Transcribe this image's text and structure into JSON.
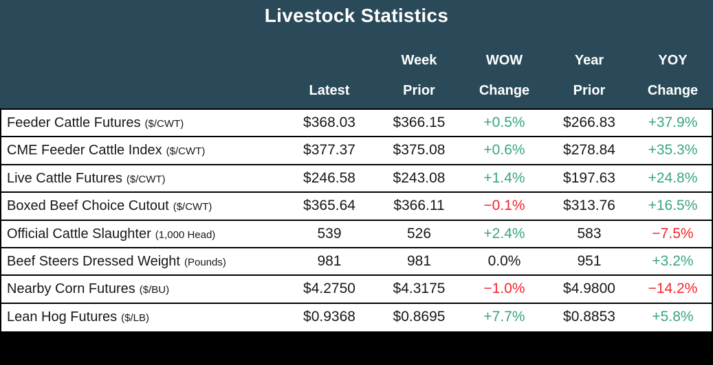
{
  "title": "Livestock Statistics",
  "table": {
    "columns": [
      {
        "line1": "",
        "line2": "Latest"
      },
      {
        "line1": "Week",
        "line2": "Prior"
      },
      {
        "line1": "WOW",
        "line2": "Change"
      },
      {
        "line1": "Year",
        "line2": "Prior"
      },
      {
        "line1": "YOY",
        "line2": "Change"
      }
    ],
    "rows": [
      {
        "label": "Feeder Cattle Futures",
        "unit": "($/CWT)",
        "latest": "$368.03",
        "week_prior": "$366.15",
        "wow_change": "+0.5%",
        "wow_dir": "pos",
        "year_prior": "$266.83",
        "yoy_change": "+37.9%",
        "yoy_dir": "pos"
      },
      {
        "label": "CME Feeder Cattle Index",
        "unit": "($/CWT)",
        "latest": "$377.37",
        "week_prior": "$375.08",
        "wow_change": "+0.6%",
        "wow_dir": "pos",
        "year_prior": "$278.84",
        "yoy_change": "+35.3%",
        "yoy_dir": "pos"
      },
      {
        "label": "Live Cattle Futures",
        "unit": "($/CWT)",
        "latest": "$246.58",
        "week_prior": "$243.08",
        "wow_change": "+1.4%",
        "wow_dir": "pos",
        "year_prior": "$197.63",
        "yoy_change": "+24.8%",
        "yoy_dir": "pos"
      },
      {
        "label": "Boxed Beef Choice Cutout",
        "unit": "($/CWT)",
        "latest": "$365.64",
        "week_prior": "$366.11",
        "wow_change": "−0.1%",
        "wow_dir": "neg",
        "year_prior": "$313.76",
        "yoy_change": "+16.5%",
        "yoy_dir": "pos"
      },
      {
        "label": "Official Cattle Slaughter",
        "unit": "(1,000 Head)",
        "latest": "539",
        "week_prior": "526",
        "wow_change": "+2.4%",
        "wow_dir": "pos",
        "year_prior": "583",
        "yoy_change": "−7.5%",
        "yoy_dir": "neg"
      },
      {
        "label": "Beef Steers Dressed Weight",
        "unit": "(Pounds)",
        "latest": "981",
        "week_prior": "981",
        "wow_change": "0.0%",
        "wow_dir": "flat",
        "year_prior": "951",
        "yoy_change": "+3.2%",
        "yoy_dir": "pos"
      },
      {
        "label": "Nearby Corn Futures",
        "unit": "($/BU)",
        "latest": "$4.2750",
        "week_prior": "$4.3175",
        "wow_change": "−1.0%",
        "wow_dir": "neg",
        "year_prior": "$4.9800",
        "yoy_change": "−14.2%",
        "yoy_dir": "neg"
      },
      {
        "label": "Lean Hog Futures",
        "unit": "($/LB)",
        "latest": "$0.9368",
        "week_prior": "$0.8695",
        "wow_change": "+7.7%",
        "wow_dir": "pos",
        "year_prior": "$0.8853",
        "yoy_change": "+5.8%",
        "yoy_dir": "pos"
      }
    ]
  },
  "colors": {
    "header_bg": "#2a4a59",
    "positive": "#3aa57b",
    "negative": "#f5232b",
    "neutral_text": "#161616",
    "row_bg": "#ffffff",
    "frame": "#000000"
  },
  "chart_data": {
    "type": "table",
    "title": "Livestock Statistics",
    "columns": [
      "",
      "Latest",
      "Week Prior",
      "WOW Change",
      "Year Prior",
      "YOY Change"
    ],
    "rows": [
      [
        "Feeder Cattle Futures ($/CWT)",
        "$368.03",
        "$366.15",
        "+0.5%",
        "$266.83",
        "+37.9%"
      ],
      [
        "CME Feeder Cattle Index ($/CWT)",
        "$377.37",
        "$375.08",
        "+0.6%",
        "$278.84",
        "+35.3%"
      ],
      [
        "Live Cattle Futures ($/CWT)",
        "$246.58",
        "$243.08",
        "+1.4%",
        "$197.63",
        "+24.8%"
      ],
      [
        "Boxed Beef Choice Cutout ($/CWT)",
        "$365.64",
        "$366.11",
        "−0.1%",
        "$313.76",
        "+16.5%"
      ],
      [
        "Official Cattle Slaughter (1,000 Head)",
        "539",
        "526",
        "+2.4%",
        "583",
        "−7.5%"
      ],
      [
        "Beef Steers Dressed Weight (Pounds)",
        "981",
        "981",
        "0.0%",
        "951",
        "+3.2%"
      ],
      [
        "Nearby Corn Futures ($/BU)",
        "$4.2750",
        "$4.3175",
        "−1.0%",
        "$4.9800",
        "−14.2%"
      ],
      [
        "Lean Hog Futures ($/LB)",
        "$0.9368",
        "$0.8695",
        "+7.7%",
        "$0.8853",
        "+5.8%"
      ]
    ]
  }
}
